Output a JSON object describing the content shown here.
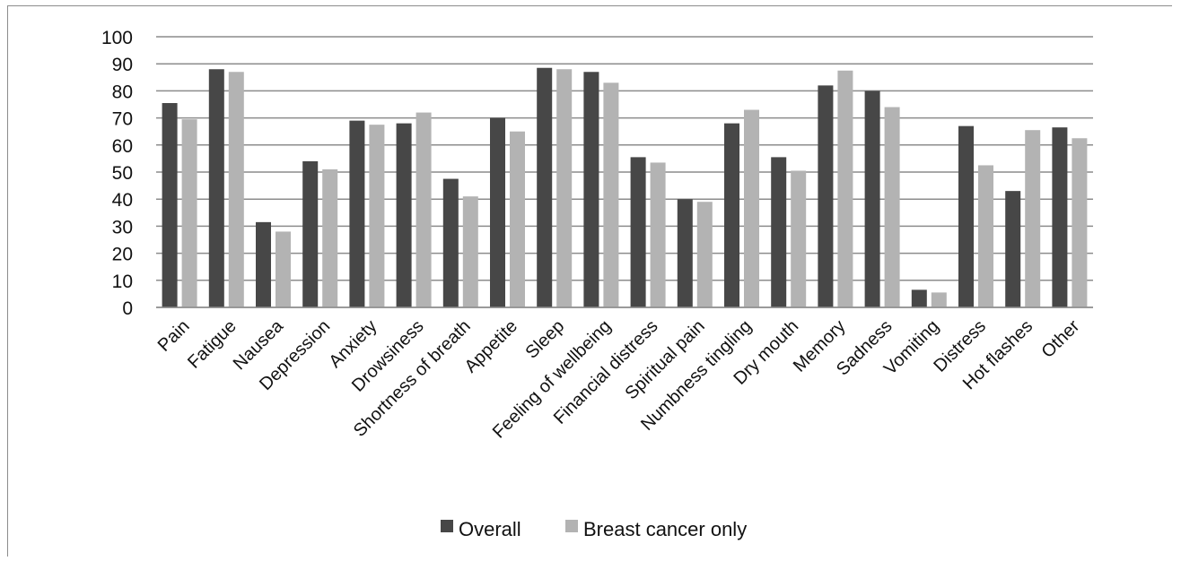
{
  "chart_data": {
    "type": "bar",
    "categories": [
      "Pain",
      "Fatigue",
      "Nausea",
      "Depression",
      "Anxiety",
      "Drowsiness",
      "Shortness of breath",
      "Appetite",
      "Sleep",
      "Feeling of wellbeing",
      "Financial distress",
      "Spiritual pain",
      "Numbness tingling",
      "Dry mouth",
      "Memory",
      "Sadness",
      "Vomiting",
      "Distress",
      "Hot flashes",
      "Other"
    ],
    "series": [
      {
        "name": "Overall",
        "color": "#474747",
        "values": [
          75.5,
          88,
          31.5,
          54,
          69,
          68,
          47.5,
          70,
          88.5,
          87,
          55.5,
          40,
          68,
          55.5,
          82,
          80,
          6.5,
          67,
          43,
          66.5
        ]
      },
      {
        "name": "Breast cancer only",
        "color": "#b3b3b3",
        "values": [
          69.5,
          87,
          28,
          51,
          67.5,
          72,
          41,
          65,
          88,
          83,
          53.5,
          39,
          73,
          50.5,
          87.5,
          74,
          5.5,
          52.5,
          65.5,
          62.5
        ]
      }
    ],
    "y_ticks": [
      "0",
      "10",
      "20",
      "30",
      "40",
      "50",
      "60",
      "70",
      "80",
      "90",
      "100"
    ],
    "ylim": [
      0,
      100
    ],
    "grid": true,
    "gridline_color": "#8c8c8c",
    "legend_position": "bottom-center"
  }
}
